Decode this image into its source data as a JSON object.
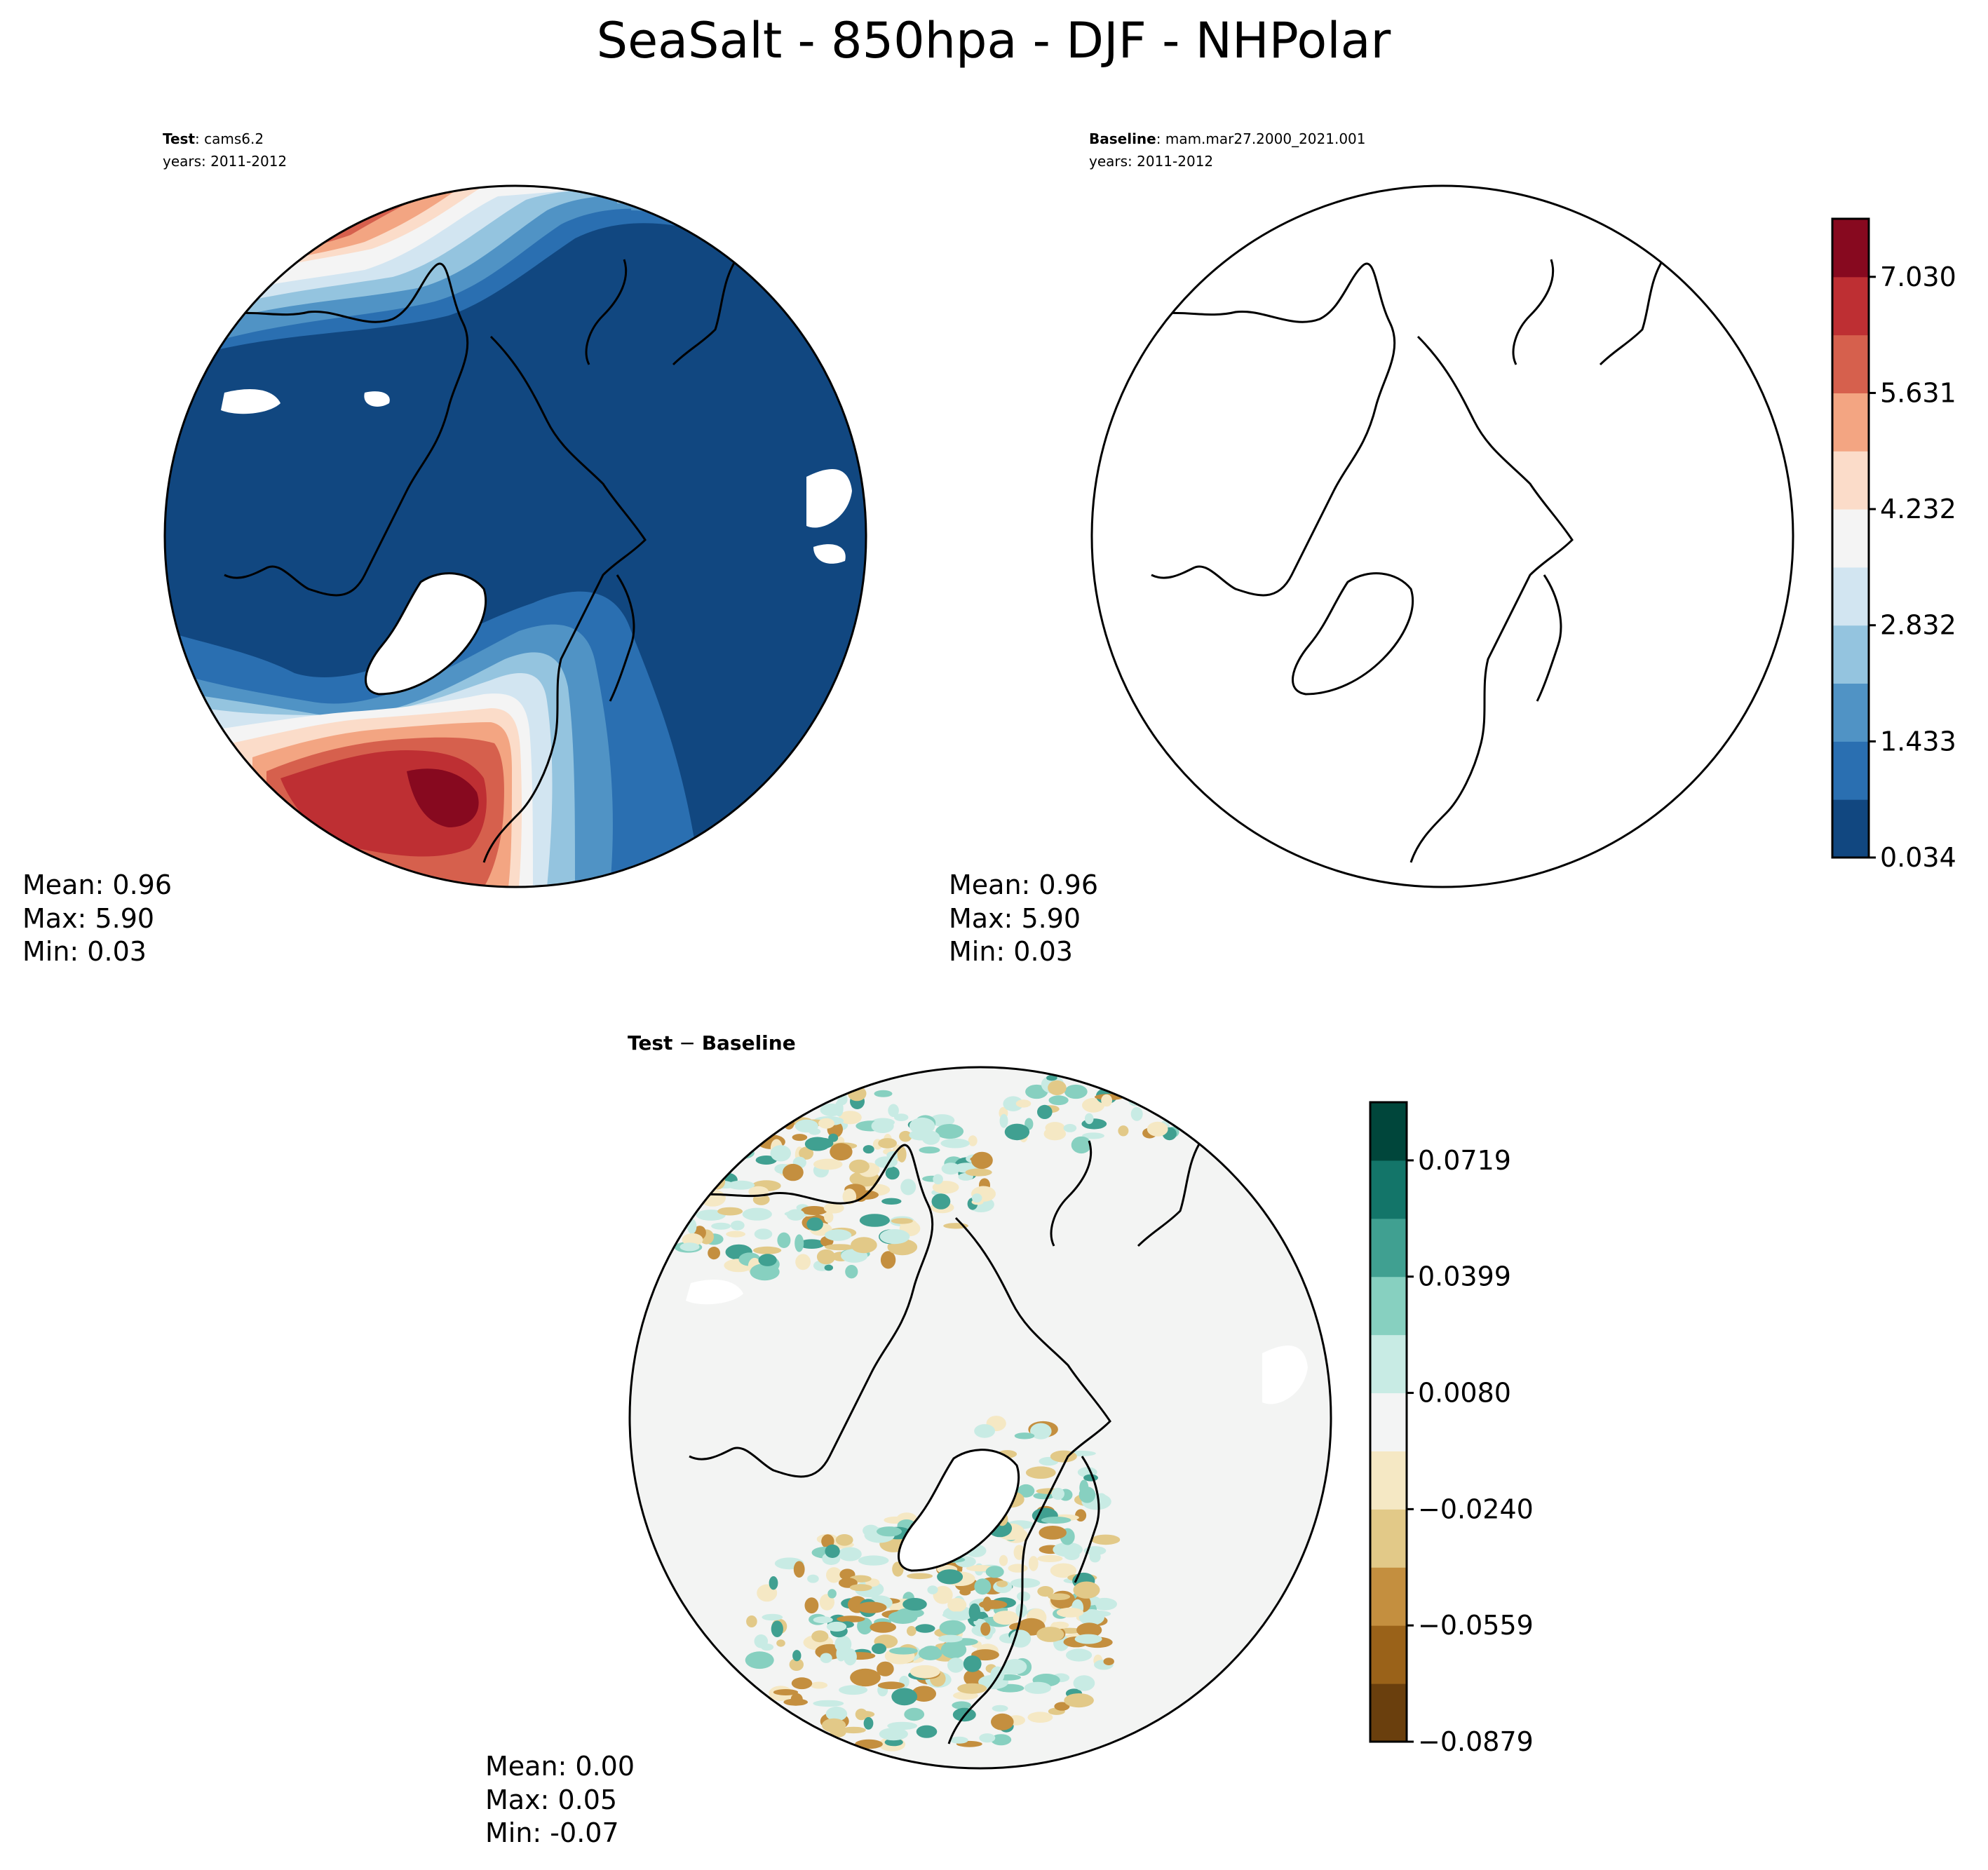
{
  "title": "SeaSalt - 850hpa - DJF - NHPolar",
  "panels": [
    {
      "id": "test",
      "label_bold": "Test",
      "label_rest": ": cams6.2",
      "years": "years: 2011-2012",
      "stats": {
        "mean": "Mean:  0.96",
        "max": "Max:  5.90",
        "min": "Min:  0.03"
      }
    },
    {
      "id": "baseline",
      "label_bold": "Baseline",
      "label_rest": ": mam.mar27.2000_2021.001",
      "years": "years: 2011-2012",
      "stats": {
        "mean": "Mean:  0.96",
        "max": "Max:  5.90",
        "min": "Min:  0.03"
      }
    },
    {
      "id": "difference",
      "label_a": "Test",
      "label_op": " − ",
      "label_b": "Baseline",
      "stats": {
        "mean": "Mean:  0.00",
        "max": "Max:  0.05",
        "min": "Min: -0.07"
      }
    }
  ],
  "colorbar_main": {
    "colors": [
      "#114780",
      "#2a6fb1",
      "#5093c5",
      "#94c4df",
      "#d2e5f1",
      "#f4f4f4",
      "#fbdcc9",
      "#f3a582",
      "#d6604d",
      "#be2f33",
      "#87091f"
    ],
    "tick_labels": [
      "0.034",
      "1.433",
      "2.832",
      "4.232",
      "5.631",
      "7.030"
    ],
    "tick_positions": [
      0,
      2,
      4,
      6,
      8,
      10
    ]
  },
  "colorbar_diff": {
    "colors": [
      "#6a3f0d",
      "#9a6219",
      "#c48f3f",
      "#e2c988",
      "#f5e8c4",
      "#f3f4f4",
      "#c8ebe4",
      "#87d0c0",
      "#40a091",
      "#137569",
      "#00463b"
    ],
    "tick_labels": [
      "−0.0879",
      "−0.0559",
      "−0.0240",
      "0.0080",
      "0.0399",
      "0.0719"
    ],
    "tick_positions": [
      0,
      2,
      4,
      6,
      8,
      10
    ]
  },
  "map_colors": {
    "ocean_low": "#114780",
    "blue2": "#2a6fb1",
    "blue3": "#5093c5",
    "blue4": "#94c4df",
    "blue5": "#d2e5f1",
    "neutral": "#f4f4f4",
    "red1": "#fbdcc9",
    "red2": "#f3a582",
    "red3": "#d6604d",
    "red4": "#be2f33",
    "red5": "#87091f",
    "diff_bg": "#f3f4f3",
    "diff_teal": "#c8ebe4",
    "diff_teal2": "#87d0c0",
    "diff_teal3": "#40a091",
    "diff_tan": "#f5e8c4",
    "diff_tan2": "#e2c988",
    "diff_brown": "#c48f3f",
    "coast": "#000000"
  }
}
